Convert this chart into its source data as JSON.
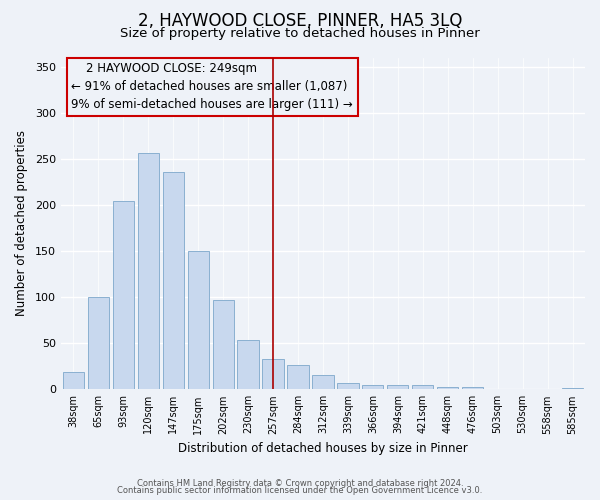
{
  "title": "2, HAYWOOD CLOSE, PINNER, HA5 3LQ",
  "subtitle": "Size of property relative to detached houses in Pinner",
  "xlabel": "Distribution of detached houses by size in Pinner",
  "ylabel": "Number of detached properties",
  "bar_labels": [
    "38sqm",
    "65sqm",
    "93sqm",
    "120sqm",
    "147sqm",
    "175sqm",
    "202sqm",
    "230sqm",
    "257sqm",
    "284sqm",
    "312sqm",
    "339sqm",
    "366sqm",
    "394sqm",
    "421sqm",
    "448sqm",
    "476sqm",
    "503sqm",
    "530sqm",
    "558sqm",
    "585sqm"
  ],
  "bar_values": [
    19,
    100,
    204,
    256,
    236,
    150,
    97,
    53,
    33,
    26,
    15,
    7,
    5,
    5,
    5,
    2,
    2,
    0,
    0,
    0,
    1
  ],
  "bar_color": "#c8d8ee",
  "bar_edge_color": "#8ab0d0",
  "vline_x": 8,
  "vline_color": "#aa0000",
  "annotation_title": "2 HAYWOOD CLOSE: 249sqm",
  "annotation_line1": "← 91% of detached houses are smaller (1,087)",
  "annotation_line2": "9% of semi-detached houses are larger (111) →",
  "annotation_box_edge": "#cc0000",
  "ylim": [
    0,
    360
  ],
  "yticks": [
    0,
    50,
    100,
    150,
    200,
    250,
    300,
    350
  ],
  "footer1": "Contains HM Land Registry data © Crown copyright and database right 2024.",
  "footer2": "Contains public sector information licensed under the Open Government Licence v3.0.",
  "bg_color": "#eef2f8",
  "title_fontsize": 12,
  "subtitle_fontsize": 9.5
}
